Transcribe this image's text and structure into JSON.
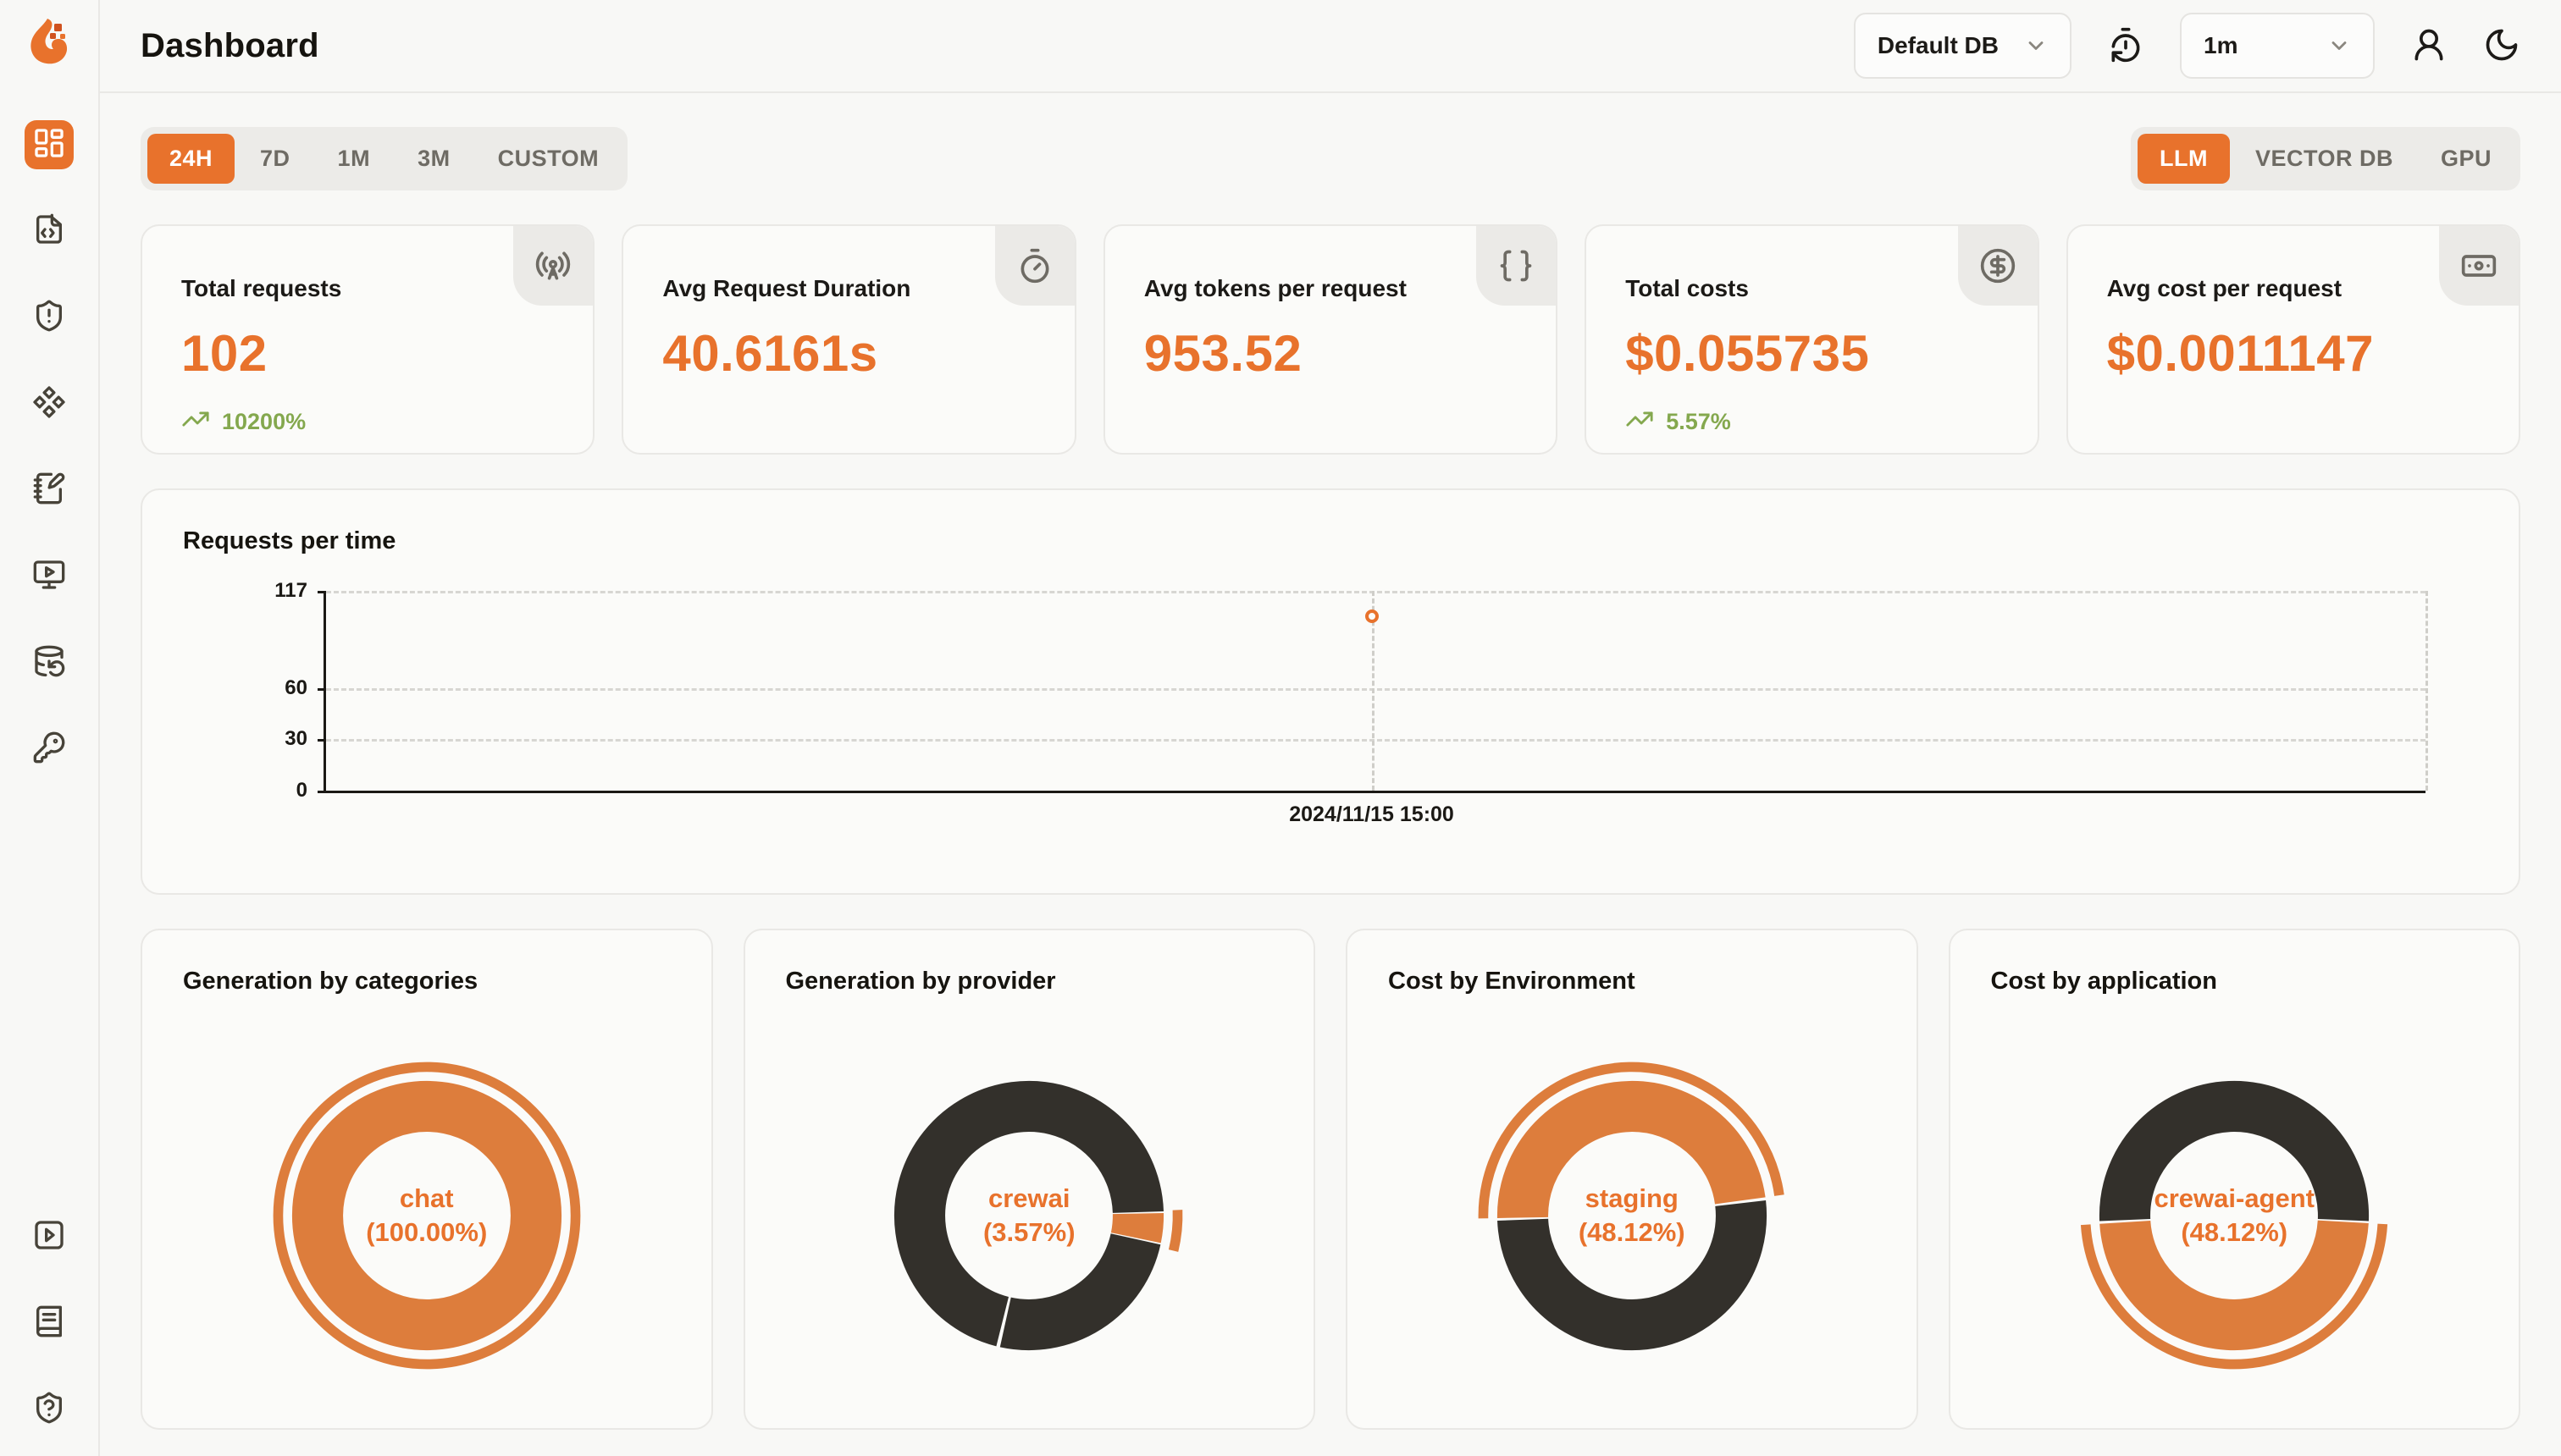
{
  "colors": {
    "accent": "#E8722C",
    "donut_orange": "#DD7D3C",
    "donut_dark": "#33302B",
    "trend_green": "#84A84E"
  },
  "page": {
    "title": "Dashboard"
  },
  "header": {
    "db_select_value": "Default DB",
    "refresh_select_value": "1m",
    "icons": [
      "timer-reset-icon",
      "user-round-icon",
      "moon-icon"
    ]
  },
  "sidebar": {
    "items": [
      {
        "name": "dashboard",
        "icon": "layout-dashboard-icon",
        "active": true
      },
      {
        "name": "requests",
        "icon": "file-code-icon",
        "active": false
      },
      {
        "name": "exceptions",
        "icon": "shield-alert-icon",
        "active": false
      },
      {
        "name": "prompts",
        "icon": "component-icon",
        "active": false
      },
      {
        "name": "vault",
        "icon": "notebook-pen-icon",
        "active": false
      },
      {
        "name": "openground",
        "icon": "monitor-play-icon",
        "active": false
      },
      {
        "name": "databases",
        "icon": "database-backup-icon",
        "active": false
      },
      {
        "name": "api-keys",
        "icon": "key-round-icon",
        "active": false
      }
    ],
    "bottom_items": [
      {
        "name": "getting-started",
        "icon": "square-play-icon",
        "active": false
      },
      {
        "name": "documentation",
        "icon": "book-text-icon",
        "active": false
      },
      {
        "name": "support",
        "icon": "shield-question-icon",
        "active": false
      }
    ]
  },
  "filters": {
    "time_ranges": [
      "24H",
      "7D",
      "1M",
      "3M",
      "CUSTOM"
    ],
    "active_time_range": "24H",
    "sources": [
      "LLM",
      "VECTOR DB",
      "GPU"
    ],
    "active_source": "LLM"
  },
  "stats": [
    {
      "label": "Total requests",
      "value": "102",
      "trend": "10200%",
      "icon": "radio-icon"
    },
    {
      "label": "Avg Request Duration",
      "value": "40.6161s",
      "trend": null,
      "icon": "timer-icon"
    },
    {
      "label": "Avg tokens per request",
      "value": "953.52",
      "trend": null,
      "icon": "braces-icon"
    },
    {
      "label": "Total costs",
      "value": "$0.055735",
      "trend": "5.57%",
      "icon": "circle-dollar-icon"
    },
    {
      "label": "Avg cost per request",
      "value": "$0.0011147",
      "trend": null,
      "icon": "banknote-icon"
    }
  ],
  "trend_icon": "trending-up-icon",
  "chart_data": [
    {
      "type": "line",
      "title": "Requests per time",
      "x": [
        "2024/11/15 15:00"
      ],
      "values": [
        102
      ],
      "ylim": [
        0,
        117
      ],
      "yticks": [
        0,
        30,
        60,
        117
      ],
      "grid": "dashed-horizontal",
      "marker_x_pct": 49.8,
      "legend": "none"
    },
    {
      "type": "pie",
      "title": "Generation by categories",
      "center_label": "chat",
      "center_pct": "(100.00%)",
      "segments": [
        {
          "label": "chat",
          "pct": 100.0,
          "color": "orange",
          "start_pct": 0
        }
      ],
      "highlight": {
        "start_pct": 0,
        "sweep_pct": 100
      }
    },
    {
      "type": "pie",
      "title": "Generation by provider",
      "center_label": "crewai",
      "center_pct": "(3.57%)",
      "segments": [
        {
          "label": "crewai",
          "pct": 3.57,
          "color": "orange",
          "start_pct": 24.7
        },
        {
          "label": "",
          "pct": 25.0,
          "color": "dark",
          "start_pct": 28.45
        },
        {
          "label": "",
          "pct": 70.6,
          "color": "dark",
          "start_pct": 53.9
        }
      ],
      "highlight": {
        "start_pct": 24.4,
        "sweep_pct": 4.4
      }
    },
    {
      "type": "pie",
      "title": "Cost by Environment",
      "center_label": "staging",
      "center_pct": "(48.12%)",
      "segments": [
        {
          "label": "staging",
          "pct": 48.12,
          "color": "orange",
          "start_pct": 74.7
        },
        {
          "label": "",
          "pct": 51.2,
          "color": "dark",
          "start_pct": 23.2
        }
      ],
      "highlight": {
        "start_pct": 74.7,
        "sweep_pct": 48.12
      }
    },
    {
      "type": "pie",
      "title": "Cost by application",
      "center_label": "crewai-agent",
      "center_pct": "(48.12%)",
      "segments": [
        {
          "label": "crewai-agent",
          "pct": 48.12,
          "color": "orange",
          "start_pct": 25.9
        },
        {
          "label": "",
          "pct": 51.3,
          "color": "dark",
          "start_pct": 74.35
        }
      ],
      "highlight": {
        "start_pct": 25.9,
        "sweep_pct": 48.12
      }
    }
  ]
}
